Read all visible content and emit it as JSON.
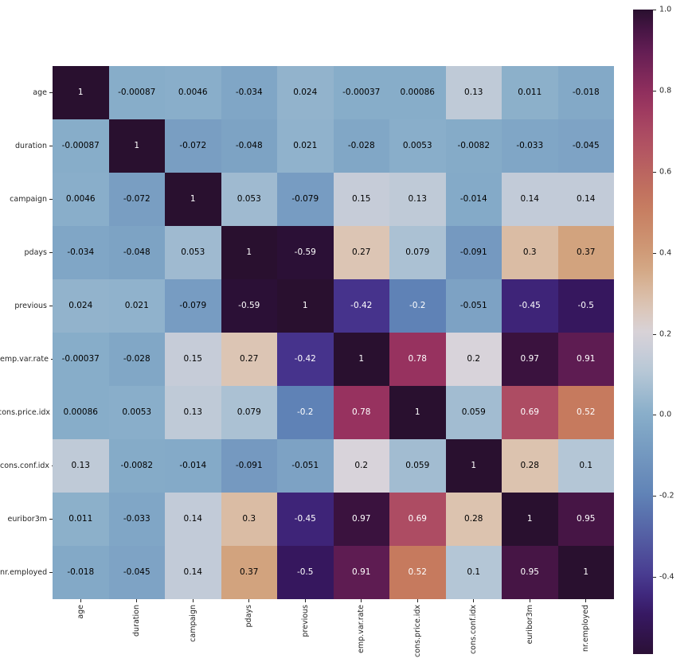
{
  "figure": {
    "background": "#ffffff"
  },
  "chart_data": {
    "type": "heatmap",
    "title": "",
    "xlabel": "",
    "ylabel": "",
    "grid": false,
    "legend_position": "right-colorbar",
    "categories": [
      "age",
      "duration",
      "campaign",
      "pdays",
      "previous",
      "emp.var.rate",
      "cons.price.idx",
      "cons.conf.idx",
      "euribor3m",
      "nr.employed"
    ],
    "matrix": [
      [
        "1",
        "-0.00087",
        "0.0046",
        "-0.034",
        "0.024",
        "-0.00037",
        "0.00086",
        "0.13",
        "0.011",
        "-0.018"
      ],
      [
        "-0.00087",
        "1",
        "-0.072",
        "-0.048",
        "0.021",
        "-0.028",
        "0.0053",
        "-0.0082",
        "-0.033",
        "-0.045"
      ],
      [
        "0.0046",
        "-0.072",
        "1",
        "0.053",
        "-0.079",
        "0.15",
        "0.13",
        "-0.014",
        "0.14",
        "0.14"
      ],
      [
        "-0.034",
        "-0.048",
        "0.053",
        "1",
        "-0.59",
        "0.27",
        "0.079",
        "-0.091",
        "0.3",
        "0.37"
      ],
      [
        "0.024",
        "0.021",
        "-0.079",
        "-0.59",
        "1",
        "-0.42",
        "-0.2",
        "-0.051",
        "-0.45",
        "-0.5"
      ],
      [
        "-0.00037",
        "-0.028",
        "0.15",
        "0.27",
        "-0.42",
        "1",
        "0.78",
        "0.2",
        "0.97",
        "0.91"
      ],
      [
        "0.00086",
        "0.0053",
        "0.13",
        "0.079",
        "-0.2",
        "0.78",
        "1",
        "0.059",
        "0.69",
        "0.52"
      ],
      [
        "0.13",
        "-0.0082",
        "-0.014",
        "-0.091",
        "-0.051",
        "0.2",
        "0.059",
        "1",
        "0.28",
        "0.1"
      ],
      [
        "0.011",
        "-0.033",
        "0.14",
        "0.3",
        "-0.45",
        "0.97",
        "0.69",
        "0.28",
        "1",
        "0.95"
      ],
      [
        "-0.018",
        "-0.045",
        "0.14",
        "0.37",
        "-0.5",
        "0.91",
        "0.52",
        "0.1",
        "0.95",
        "1"
      ]
    ],
    "vmin": -0.59,
    "vmax": 1.0,
    "colormap": {
      "stops": [
        [
          0.0,
          "#2b1036"
        ],
        [
          0.057,
          "#36175e"
        ],
        [
          0.088,
          "#3e2478"
        ],
        [
          0.107,
          "#46338c"
        ],
        [
          0.245,
          "#5f82b6"
        ],
        [
          0.371,
          "#87adc9"
        ],
        [
          0.434,
          "#b4c6d6"
        ],
        [
          0.497,
          "#d8d3da"
        ],
        [
          0.547,
          "#dcc3af"
        ],
        [
          0.604,
          "#d2a37e"
        ],
        [
          0.698,
          "#c67a5e"
        ],
        [
          0.805,
          "#ad4c63"
        ],
        [
          0.862,
          "#97325f"
        ],
        [
          0.943,
          "#5e1c52"
        ],
        [
          0.981,
          "#3a123e"
        ],
        [
          1.0,
          "#29102f"
        ]
      ]
    },
    "annotation_colors": {
      "on_light": "#000000",
      "on_dark": "#ffffff"
    },
    "axis_label_color": "#262626",
    "colorbar": {
      "ticks": [
        "1.0",
        "0.8",
        "0.6",
        "0.4",
        "0.2",
        "0.0",
        "-0.2",
        "-0.4"
      ],
      "tick_values": [
        1.0,
        0.8,
        0.6,
        0.4,
        0.2,
        0.0,
        -0.2,
        -0.4
      ]
    }
  }
}
